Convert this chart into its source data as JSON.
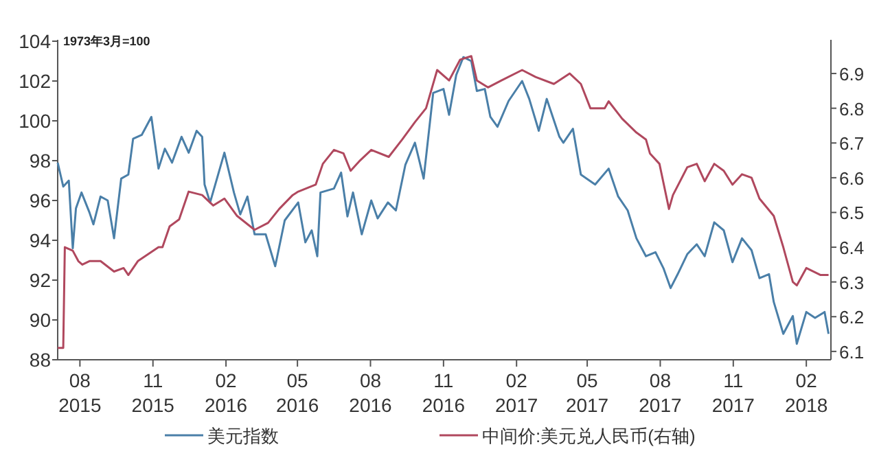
{
  "chart_data": {
    "type": "line",
    "annotations": [
      "1973年3月=100"
    ],
    "legend": "bottom",
    "xlim": [
      "2015-07-04",
      "2018-03-04"
    ],
    "xticks": [
      {
        "value": "2015-08-01",
        "label": "08 2015"
      },
      {
        "value": "2015-11-01",
        "label": "11 2015"
      },
      {
        "value": "2016-02-01",
        "label": "02 2016"
      },
      {
        "value": "2016-05-01",
        "label": "05 2016"
      },
      {
        "value": "2016-08-01",
        "label": "08 2016"
      },
      {
        "value": "2016-11-01",
        "label": "11 2016"
      },
      {
        "value": "2017-02-01",
        "label": "02 2017"
      },
      {
        "value": "2017-05-01",
        "label": "05 2017"
      },
      {
        "value": "2017-08-01",
        "label": "08 2017"
      },
      {
        "value": "2017-11-01",
        "label": "11 2017"
      },
      {
        "value": "2018-02-01",
        "label": "02 2018"
      }
    ],
    "ylim": [
      88,
      104
    ],
    "yticks": [
      88,
      90,
      92,
      94,
      96,
      98,
      100,
      102,
      104
    ],
    "y2lim": [
      6.076,
      6.993
    ],
    "y2ticks": [
      6.1,
      6.2,
      6.3,
      6.4,
      6.5,
      6.6,
      6.7,
      6.8,
      6.9
    ],
    "series": [
      {
        "name": "美元指数",
        "color": "#4a7fa8",
        "x": [
          "2015-07-04",
          "2015-07-11",
          "2015-07-18",
          "2015-07-23",
          "2015-07-27",
          "2015-08-03",
          "2015-08-13",
          "2015-08-18",
          "2015-08-27",
          "2015-09-05",
          "2015-09-13",
          "2015-09-22",
          "2015-10-01",
          "2015-10-07",
          "2015-10-18",
          "2015-10-30",
          "2015-11-08",
          "2015-11-16",
          "2015-11-25",
          "2015-12-07",
          "2015-12-16",
          "2015-12-26",
          "2016-01-02",
          "2016-01-05",
          "2016-01-12",
          "2016-01-30",
          "2016-02-11",
          "2016-02-19",
          "2016-02-28",
          "2016-03-08",
          "2016-03-22",
          "2016-04-03",
          "2016-04-15",
          "2016-05-02",
          "2016-05-11",
          "2016-05-19",
          "2016-05-26",
          "2016-05-30",
          "2016-06-16",
          "2016-06-25",
          "2016-07-03",
          "2016-07-10",
          "2016-07-21",
          "2016-08-02",
          "2016-08-10",
          "2016-08-23",
          "2016-09-02",
          "2016-09-14",
          "2016-09-26",
          "2016-10-07",
          "2016-10-19",
          "2016-11-01",
          "2016-11-08",
          "2016-11-17",
          "2016-11-26",
          "2016-12-06",
          "2016-12-13",
          "2016-12-23",
          "2016-12-30",
          "2017-01-08",
          "2017-01-22",
          "2017-02-08",
          "2017-02-17",
          "2017-03-01",
          "2017-03-11",
          "2017-03-27",
          "2017-04-01",
          "2017-04-13",
          "2017-04-23",
          "2017-05-11",
          "2017-05-28",
          "2017-06-09",
          "2017-06-21",
          "2017-07-02",
          "2017-07-14",
          "2017-07-26",
          "2017-08-05",
          "2017-08-14",
          "2017-08-23",
          "2017-09-04",
          "2017-09-16",
          "2017-09-26",
          "2017-10-08",
          "2017-10-20",
          "2017-10-31",
          "2017-11-12",
          "2017-11-24",
          "2017-12-04",
          "2017-12-16",
          "2017-12-22",
          "2018-01-03",
          "2018-01-15",
          "2018-01-20",
          "2018-02-01",
          "2018-02-12",
          "2018-02-24",
          "2018-03-01"
        ],
        "values": [
          97.9,
          96.7,
          97.0,
          93.6,
          95.6,
          96.4,
          95.4,
          94.8,
          96.2,
          96.0,
          94.1,
          97.1,
          97.3,
          99.1,
          99.3,
          100.2,
          97.6,
          98.6,
          97.9,
          99.2,
          98.4,
          99.5,
          99.2,
          96.8,
          95.9,
          98.4,
          96.4,
          95.3,
          96.2,
          94.3,
          94.3,
          92.7,
          95.0,
          95.9,
          93.9,
          94.5,
          93.2,
          96.4,
          96.6,
          97.4,
          95.2,
          96.4,
          94.3,
          96.0,
          95.1,
          95.9,
          95.5,
          97.8,
          98.9,
          97.1,
          101.4,
          101.6,
          100.3,
          102.3,
          103.2,
          103.0,
          101.5,
          101.6,
          100.2,
          99.7,
          101.0,
          102.0,
          101.1,
          99.5,
          101.1,
          99.2,
          98.9,
          99.6,
          97.3,
          96.8,
          97.6,
          96.2,
          95.5,
          94.1,
          93.2,
          93.4,
          92.6,
          91.6,
          92.3,
          93.3,
          93.8,
          93.2,
          94.9,
          94.5,
          92.9,
          94.1,
          93.5,
          92.1,
          92.3,
          90.9,
          89.3,
          90.2,
          88.8,
          90.4,
          90.1,
          90.4,
          89.3
        ]
      },
      {
        "name": "中间价:美元兑人民币(右轴)",
        "color": "#b0485e",
        "axis": "y2",
        "x": [
          "2015-07-04",
          "2015-07-11",
          "2015-07-13",
          "2015-07-23",
          "2015-07-30",
          "2015-08-04",
          "2015-08-13",
          "2015-08-27",
          "2015-09-13",
          "2015-09-25",
          "2015-10-01",
          "2015-10-13",
          "2015-11-08",
          "2015-11-13",
          "2015-11-22",
          "2015-12-04",
          "2015-12-16",
          "2016-01-02",
          "2016-01-16",
          "2016-01-30",
          "2016-02-15",
          "2016-03-08",
          "2016-03-25",
          "2016-04-08",
          "2016-04-25",
          "2016-05-02",
          "2016-05-24",
          "2016-06-02",
          "2016-06-16",
          "2016-06-28",
          "2016-07-07",
          "2016-07-19",
          "2016-08-02",
          "2016-08-24",
          "2016-09-10",
          "2016-09-26",
          "2016-10-10",
          "2016-10-24",
          "2016-11-08",
          "2016-11-22",
          "2016-12-06",
          "2016-12-13",
          "2016-12-27",
          "2017-01-13",
          "2017-02-08",
          "2017-02-25",
          "2017-03-20",
          "2017-04-09",
          "2017-04-23",
          "2017-05-05",
          "2017-05-23",
          "2017-05-28",
          "2017-06-14",
          "2017-07-02",
          "2017-07-14",
          "2017-07-19",
          "2017-07-31",
          "2017-08-12",
          "2017-08-17",
          "2017-09-04",
          "2017-09-16",
          "2017-09-26",
          "2017-10-08",
          "2017-10-20",
          "2017-10-31",
          "2017-11-12",
          "2017-11-24",
          "2017-12-04",
          "2017-12-22",
          "2018-01-03",
          "2018-01-15",
          "2018-01-20",
          "2018-02-01",
          "2018-02-19",
          "2018-03-01"
        ],
        "values": [
          6.11,
          6.11,
          6.4,
          6.39,
          6.36,
          6.35,
          6.36,
          6.36,
          6.33,
          6.34,
          6.32,
          6.36,
          6.4,
          6.4,
          6.46,
          6.48,
          6.56,
          6.55,
          6.52,
          6.54,
          6.49,
          6.45,
          6.47,
          6.51,
          6.55,
          6.56,
          6.58,
          6.64,
          6.68,
          6.67,
          6.62,
          6.65,
          6.68,
          6.66,
          6.71,
          6.76,
          6.8,
          6.91,
          6.88,
          6.94,
          6.95,
          6.88,
          6.86,
          6.88,
          6.91,
          6.89,
          6.87,
          6.9,
          6.87,
          6.8,
          6.8,
          6.82,
          6.77,
          6.73,
          6.71,
          6.67,
          6.64,
          6.51,
          6.55,
          6.63,
          6.64,
          6.59,
          6.64,
          6.62,
          6.58,
          6.61,
          6.6,
          6.54,
          6.49,
          6.4,
          6.3,
          6.29,
          6.34,
          6.32,
          6.32
        ]
      }
    ]
  }
}
